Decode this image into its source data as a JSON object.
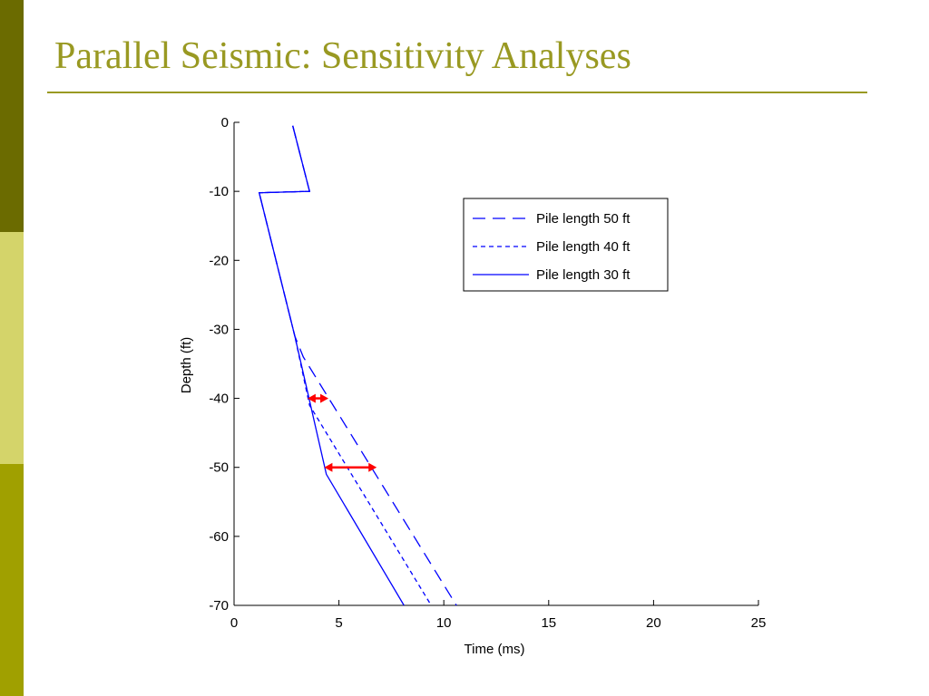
{
  "slide": {
    "title": "Parallel Seismic: Sensitivity Analyses"
  },
  "colors": {
    "title": "#999922",
    "sidebar_dark": "#6b6b00",
    "sidebar_light": "#d4d46a",
    "sidebar_mid": "#a0a000",
    "series": "#0000ff",
    "arrow": "#ff0000"
  },
  "chart_data": {
    "type": "line",
    "xlabel": "Time (ms)",
    "ylabel": "Depth (ft)",
    "xlim": [
      0,
      25
    ],
    "ylim": [
      -70,
      0
    ],
    "xticks": [
      "0",
      "5",
      "10",
      "15",
      "20",
      "25"
    ],
    "yticks": [
      "0",
      "-10",
      "-20",
      "-30",
      "-40",
      "-50",
      "-60",
      "-70"
    ],
    "grid": false,
    "legend_position": "top-right",
    "series": [
      {
        "name": "Pile length 50 ft",
        "style": "longdash",
        "points": [
          [
            2.8,
            -0.5
          ],
          [
            3.6,
            -10
          ],
          [
            1.2,
            -10.2
          ],
          [
            2.9,
            -31
          ],
          [
            3.3,
            -34
          ],
          [
            10.6,
            -70
          ]
        ]
      },
      {
        "name": "Pile length 40 ft",
        "style": "shortdash",
        "points": [
          [
            2.8,
            -0.5
          ],
          [
            3.6,
            -10
          ],
          [
            1.2,
            -10.2
          ],
          [
            2.9,
            -31
          ],
          [
            3.6,
            -41
          ],
          [
            9.4,
            -70
          ]
        ]
      },
      {
        "name": "Pile length 30 ft",
        "style": "solid",
        "points": [
          [
            2.8,
            -0.5
          ],
          [
            3.6,
            -10
          ],
          [
            1.2,
            -10.2
          ],
          [
            2.9,
            -31
          ],
          [
            4.4,
            -51
          ],
          [
            8.1,
            -70
          ]
        ]
      }
    ],
    "annotations": [
      {
        "type": "double-arrow",
        "color": "#ff0000",
        "x": [
          3.5,
          4.5
        ],
        "y": -40
      },
      {
        "type": "double-arrow",
        "color": "#ff0000",
        "x": [
          4.3,
          6.8
        ],
        "y": -50
      }
    ]
  }
}
